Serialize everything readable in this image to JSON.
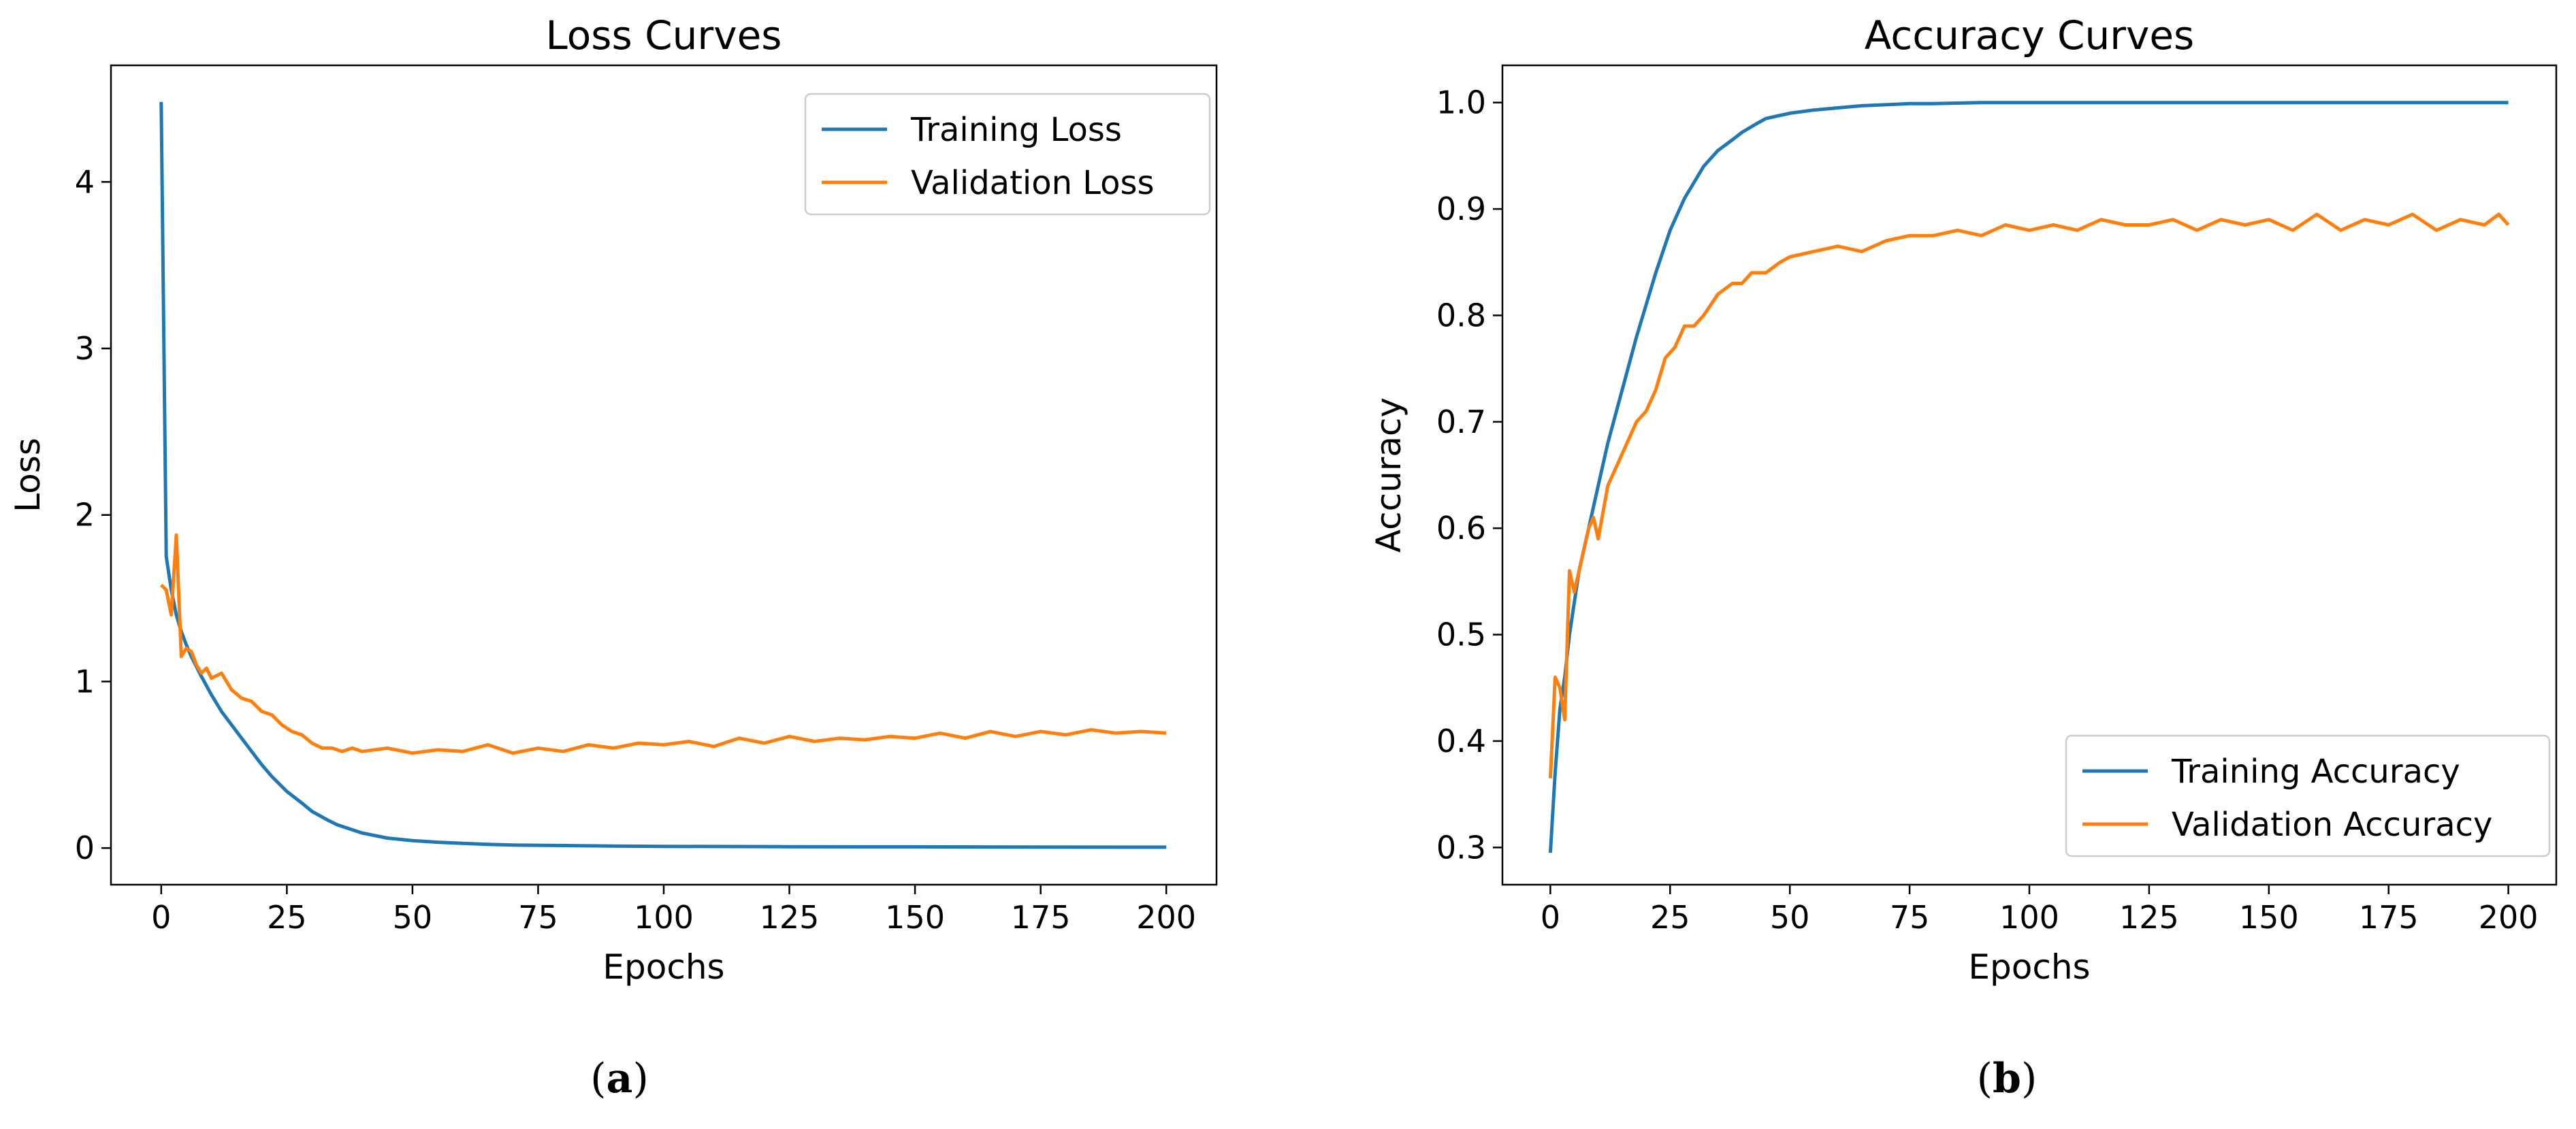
{
  "chart_data": [
    {
      "type": "line",
      "title": "Loss Curves",
      "xlabel": "Epochs",
      "ylabel": "Loss",
      "xlim": [
        -10,
        210
      ],
      "ylim": [
        -0.22,
        4.7
      ],
      "xticks": [
        0,
        25,
        50,
        75,
        100,
        125,
        150,
        175,
        200
      ],
      "yticks": [
        0,
        1,
        2,
        3,
        4
      ],
      "legend": "top-right",
      "panel_label": {
        "open": "(",
        "letter": "a",
        "close": ")"
      },
      "series": [
        {
          "name": "Training Loss",
          "color": "#1f77b4",
          "x": [
            0,
            1,
            2,
            3,
            4,
            5,
            6,
            8,
            10,
            12,
            15,
            18,
            20,
            22,
            25,
            28,
            30,
            33,
            35,
            38,
            40,
            45,
            50,
            55,
            60,
            65,
            70,
            80,
            90,
            100,
            125,
            150,
            175,
            200
          ],
          "values": [
            4.48,
            1.75,
            1.55,
            1.4,
            1.3,
            1.22,
            1.15,
            1.03,
            0.92,
            0.82,
            0.7,
            0.58,
            0.5,
            0.43,
            0.34,
            0.27,
            0.22,
            0.17,
            0.14,
            0.11,
            0.09,
            0.06,
            0.045,
            0.035,
            0.028,
            0.022,
            0.018,
            0.015,
            0.012,
            0.01,
            0.008,
            0.007,
            0.006,
            0.005
          ]
        },
        {
          "name": "Validation Loss",
          "color": "#ff7f0e",
          "x": [
            0,
            1,
            2,
            3,
            4,
            5,
            6,
            7,
            8,
            9,
            10,
            12,
            14,
            16,
            18,
            20,
            22,
            24,
            26,
            28,
            30,
            32,
            34,
            36,
            38,
            40,
            45,
            50,
            55,
            60,
            65,
            70,
            75,
            80,
            85,
            90,
            95,
            100,
            105,
            110,
            115,
            120,
            125,
            130,
            135,
            140,
            145,
            150,
            155,
            160,
            165,
            170,
            175,
            180,
            185,
            190,
            195,
            200
          ],
          "values": [
            1.58,
            1.55,
            1.4,
            1.88,
            1.15,
            1.2,
            1.18,
            1.1,
            1.05,
            1.08,
            1.02,
            1.05,
            0.95,
            0.9,
            0.88,
            0.82,
            0.8,
            0.74,
            0.7,
            0.68,
            0.63,
            0.6,
            0.6,
            0.58,
            0.6,
            0.58,
            0.6,
            0.57,
            0.59,
            0.58,
            0.62,
            0.57,
            0.6,
            0.58,
            0.62,
            0.6,
            0.63,
            0.62,
            0.64,
            0.61,
            0.66,
            0.63,
            0.67,
            0.64,
            0.66,
            0.65,
            0.67,
            0.66,
            0.69,
            0.66,
            0.7,
            0.67,
            0.7,
            0.68,
            0.71,
            0.69,
            0.7,
            0.69
          ]
        }
      ]
    },
    {
      "type": "line",
      "title": "Accuracy Curves",
      "xlabel": "Epochs",
      "ylabel": "Accuracy",
      "xlim": [
        -10,
        210
      ],
      "ylim": [
        0.265,
        1.035
      ],
      "xticks": [
        0,
        25,
        50,
        75,
        100,
        125,
        150,
        175,
        200
      ],
      "yticks": [
        0.3,
        0.4,
        0.5,
        0.6,
        0.7,
        0.8,
        0.9,
        1.0
      ],
      "legend": "bottom-right",
      "panel_label": {
        "open": "(",
        "letter": "b",
        "close": ")"
      },
      "series": [
        {
          "name": "Training Accuracy",
          "color": "#1f77b4",
          "x": [
            0,
            1,
            2,
            3,
            4,
            5,
            6,
            8,
            10,
            12,
            15,
            18,
            20,
            22,
            25,
            28,
            30,
            32,
            35,
            38,
            40,
            43,
            45,
            48,
            50,
            55,
            60,
            65,
            70,
            75,
            80,
            90,
            100,
            125,
            150,
            175,
            200
          ],
          "values": [
            0.295,
            0.37,
            0.43,
            0.46,
            0.5,
            0.53,
            0.56,
            0.6,
            0.64,
            0.68,
            0.73,
            0.78,
            0.81,
            0.84,
            0.88,
            0.91,
            0.925,
            0.94,
            0.955,
            0.965,
            0.972,
            0.98,
            0.985,
            0.988,
            0.99,
            0.993,
            0.995,
            0.997,
            0.998,
            0.999,
            0.999,
            1.0,
            1.0,
            1.0,
            1.0,
            1.0,
            1.0
          ]
        },
        {
          "name": "Validation Accuracy",
          "color": "#ff7f0e",
          "x": [
            0,
            1,
            2,
            3,
            4,
            5,
            6,
            7,
            8,
            9,
            10,
            12,
            14,
            16,
            18,
            20,
            22,
            24,
            26,
            28,
            30,
            32,
            35,
            38,
            40,
            42,
            45,
            48,
            50,
            55,
            60,
            65,
            70,
            75,
            80,
            85,
            90,
            95,
            100,
            105,
            110,
            115,
            120,
            125,
            130,
            135,
            140,
            145,
            150,
            155,
            160,
            165,
            170,
            175,
            180,
            185,
            190,
            195,
            198,
            200
          ],
          "values": [
            0.365,
            0.46,
            0.45,
            0.42,
            0.56,
            0.54,
            0.56,
            0.58,
            0.6,
            0.61,
            0.59,
            0.64,
            0.66,
            0.68,
            0.7,
            0.71,
            0.73,
            0.76,
            0.77,
            0.79,
            0.79,
            0.8,
            0.82,
            0.83,
            0.83,
            0.84,
            0.84,
            0.85,
            0.855,
            0.86,
            0.865,
            0.86,
            0.87,
            0.875,
            0.875,
            0.88,
            0.875,
            0.885,
            0.88,
            0.885,
            0.88,
            0.89,
            0.885,
            0.885,
            0.89,
            0.88,
            0.89,
            0.885,
            0.89,
            0.88,
            0.895,
            0.88,
            0.89,
            0.885,
            0.895,
            0.88,
            0.89,
            0.885,
            0.895,
            0.885
          ]
        }
      ]
    }
  ]
}
